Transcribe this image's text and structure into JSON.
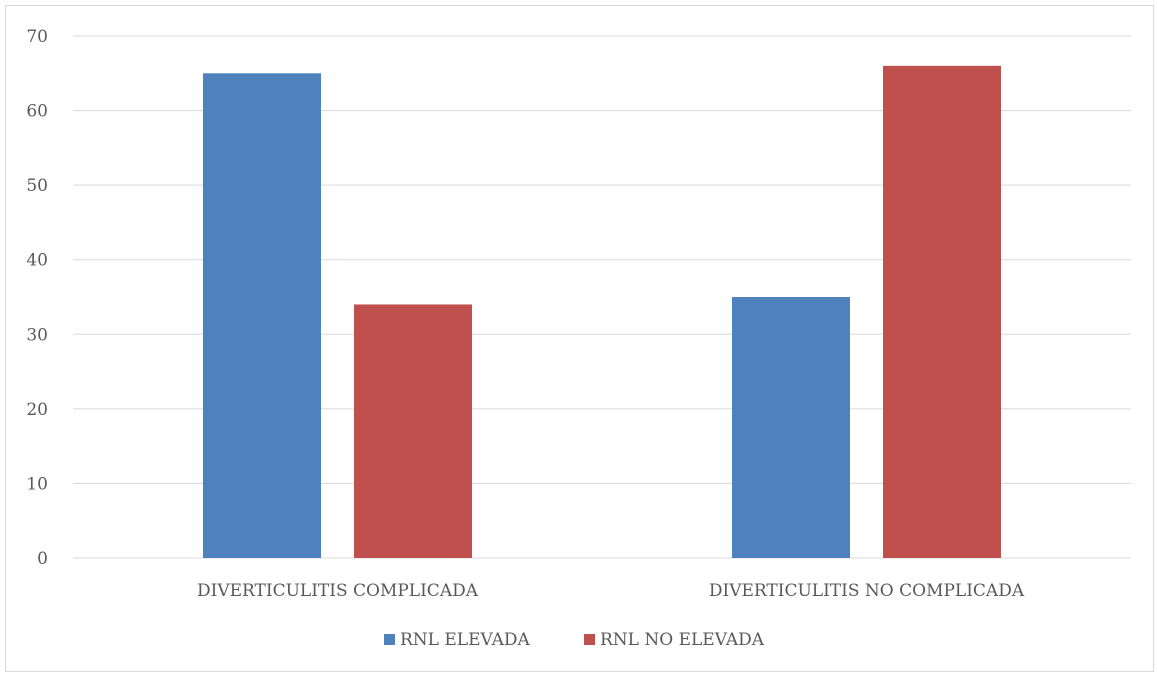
{
  "chart_data": {
    "type": "bar",
    "categories": [
      "DIVERTICULITIS COMPLICADA",
      "DIVERTICULITIS NO COMPLICADA"
    ],
    "series": [
      {
        "name": "RNL ELEVADA",
        "values": [
          65,
          35
        ],
        "color": "#4f81bd"
      },
      {
        "name": "RNL NO ELEVADA",
        "values": [
          34,
          66
        ],
        "color": "#c0504d"
      }
    ],
    "ylim": [
      0,
      70
    ],
    "yticks": [
      0,
      10,
      20,
      30,
      40,
      50,
      60,
      70
    ],
    "grid": true,
    "legend_position": "bottom",
    "title": "",
    "xlabel": "",
    "ylabel": ""
  }
}
